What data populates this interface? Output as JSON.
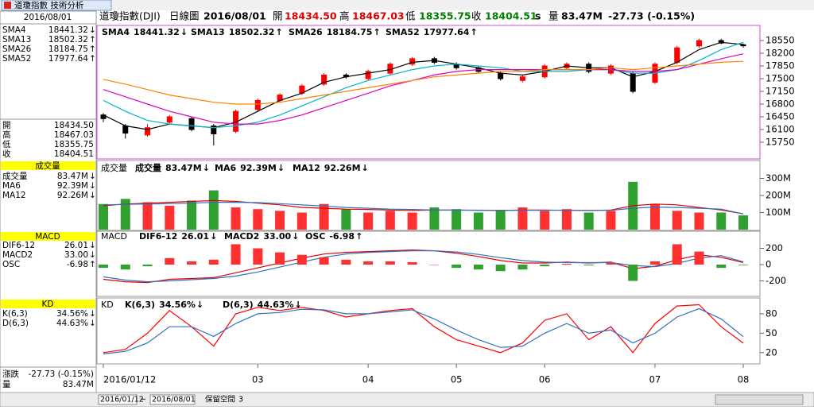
{
  "window": {
    "tab": "道瓊指數 技術分析"
  },
  "header": {
    "symbol": "道瓊指數(DJI)",
    "period": "日線圖",
    "date": "2016/08/01",
    "open_label": "開",
    "open": "18434.50",
    "high_label": "高",
    "high": "18467.03",
    "low_label": "低",
    "low": "18355.75",
    "close_label": "收",
    "close": "18404.51",
    "flag": "s",
    "volume_label": "量",
    "volume": "83.47M",
    "change": "-27.73 (-0.15%)"
  },
  "sidebar": {
    "change_label": "漲跌"
  },
  "footer": {
    "start": "2016/01/12",
    "sep": "~",
    "end": "2016/08/01",
    "reserve_label": "保留空間",
    "reserve": "3"
  },
  "chart_data": [
    {
      "type": "candlestick",
      "categories": [
        "2016/01/12",
        null,
        null,
        null,
        null,
        null,
        null,
        "03",
        null,
        null,
        null,
        null,
        "04",
        null,
        null,
        null,
        "05",
        null,
        null,
        null,
        "06",
        null,
        null,
        null,
        null,
        "07",
        null,
        null,
        null,
        "08"
      ],
      "open": [
        16500,
        16200,
        15950,
        16300,
        16400,
        16200,
        16050,
        16650,
        16900,
        17100,
        17350,
        17600,
        17500,
        17650,
        17900,
        18050,
        17900,
        17800,
        17650,
        17450,
        17550,
        17800,
        17900,
        17650,
        17650,
        17400,
        17950,
        18400,
        18550,
        18434.5
      ],
      "high": [
        16550,
        16250,
        16250,
        16500,
        16450,
        16250,
        16650,
        16950,
        17100,
        17350,
        17650,
        17650,
        17750,
        17950,
        18100,
        18100,
        17950,
        17850,
        17700,
        17600,
        17900,
        17950,
        17950,
        17900,
        17700,
        17950,
        18400,
        18600,
        18600,
        18467.03
      ],
      "low": [
        16300,
        15850,
        15900,
        16250,
        16050,
        15660,
        16000,
        16600,
        16850,
        17050,
        17300,
        17500,
        17450,
        17600,
        17850,
        17900,
        17750,
        17650,
        17450,
        17400,
        17500,
        17750,
        17650,
        17600,
        17100,
        17350,
        17900,
        18350,
        18450,
        18355.75
      ],
      "close": [
        16400,
        16000,
        16150,
        16450,
        16100,
        15980,
        16600,
        16900,
        17050,
        17300,
        17600,
        17550,
        17700,
        17900,
        18050,
        17950,
        17800,
        17700,
        17500,
        17550,
        17850,
        17900,
        17700,
        17850,
        17150,
        17900,
        18350,
        18550,
        18480,
        18404.51
      ],
      "up_color": "#ff0000",
      "down_color": "#000000",
      "series": [
        {
          "name": "SMA4",
          "color": "#000000",
          "style": "line",
          "last_label": "18441.32",
          "arrow": "↓",
          "arrow_color": "#008000",
          "values": [
            16500,
            16200,
            16100,
            16250,
            16200,
            16150,
            16300,
            16600,
            16900,
            17100,
            17400,
            17550,
            17650,
            17750,
            17950,
            18000,
            17900,
            17800,
            17650,
            17600,
            17700,
            17850,
            17800,
            17800,
            17550,
            17700,
            17950,
            18300,
            18500,
            18441.32
          ]
        },
        {
          "name": "SMA13",
          "color": "#00b8c8",
          "style": "line",
          "last_label": "18502.32",
          "arrow": "↑",
          "arrow_color": "#ff0000",
          "values": [
            16900,
            16600,
            16350,
            16250,
            16200,
            16150,
            16200,
            16300,
            16500,
            16750,
            17000,
            17250,
            17450,
            17600,
            17750,
            17850,
            17900,
            17850,
            17800,
            17700,
            17700,
            17700,
            17750,
            17750,
            17650,
            17650,
            17750,
            18000,
            18300,
            18502.32
          ]
        },
        {
          "name": "SMA26",
          "color": "#e000c0",
          "style": "line",
          "last_label": "18184.75",
          "arrow": "↑",
          "arrow_color": "#ff0000",
          "values": [
            17200,
            17000,
            16800,
            16600,
            16450,
            16300,
            16250,
            16250,
            16350,
            16500,
            16700,
            16900,
            17100,
            17300,
            17450,
            17600,
            17700,
            17750,
            17750,
            17750,
            17750,
            17750,
            17750,
            17750,
            17700,
            17700,
            17750,
            17900,
            18050,
            18184.75
          ]
        },
        {
          "name": "SMA52",
          "color": "#ff8000",
          "style": "line",
          "last_label": "17977.64",
          "arrow": "↑",
          "arrow_color": "#ff0000",
          "values": [
            17480,
            17350,
            17200,
            17050,
            16950,
            16850,
            16800,
            16800,
            16850,
            16950,
            17050,
            17150,
            17250,
            17350,
            17450,
            17550,
            17600,
            17650,
            17700,
            17700,
            17750,
            17750,
            17750,
            17800,
            17750,
            17800,
            17850,
            17900,
            17950,
            17977.64
          ]
        }
      ],
      "ylim": [
        15290,
        18944
      ],
      "yticks": [
        18550,
        18200,
        17850,
        17500,
        17150,
        16800,
        16450,
        16100,
        15750
      ]
    },
    {
      "type": "bar",
      "title": "成交量",
      "series": [
        {
          "name": "成交量",
          "style": "bar",
          "color": "#000000",
          "up_color": "#ff3030",
          "down_color": "#30a030",
          "last_label": "83.47M",
          "arrow": "↓",
          "arrow_color": "#008000",
          "values": [
            150,
            180,
            160,
            140,
            170,
            230,
            130,
            120,
            110,
            100,
            150,
            120,
            100,
            110,
            100,
            130,
            120,
            100,
            110,
            130,
            110,
            120,
            100,
            110,
            280,
            150,
            110,
            100,
            100,
            83.47
          ]
        },
        {
          "name": "MA6",
          "color": "#e00000",
          "style": "line",
          "last_label": "92.39M",
          "arrow": "↓",
          "arrow_color": "#008000",
          "values": [
            140,
            150,
            155,
            160,
            165,
            170,
            165,
            155,
            145,
            130,
            125,
            120,
            118,
            115,
            112,
            115,
            115,
            113,
            112,
            115,
            115,
            113,
            112,
            115,
            140,
            150,
            145,
            130,
            115,
            92.39
          ]
        },
        {
          "name": "MA12",
          "color": "#3070c0",
          "style": "line",
          "last_label": "92.26M",
          "arrow": "↓",
          "arrow_color": "#008000",
          "values": [
            145,
            148,
            150,
            152,
            155,
            160,
            160,
            158,
            152,
            145,
            138,
            130,
            125,
            120,
            118,
            115,
            114,
            114,
            113,
            113,
            113,
            114,
            113,
            113,
            125,
            132,
            130,
            125,
            120,
            92.26
          ]
        }
      ],
      "ylim": [
        0,
        400
      ],
      "yticks": [
        {
          "value": 300,
          "label": "300M"
        },
        {
          "value": 200,
          "label": "200M"
        },
        {
          "value": 100,
          "label": "100M"
        }
      ]
    },
    {
      "type": "bar",
      "title": "MACD",
      "series": [
        {
          "name": "DIF6-12",
          "color": "#e00000",
          "style": "line",
          "last_label": "26.01",
          "arrow": "↓",
          "arrow_color": "#008000",
          "values": [
            -180,
            -210,
            -220,
            -180,
            -170,
            -160,
            -100,
            -40,
            20,
            80,
            130,
            150,
            160,
            170,
            180,
            170,
            140,
            100,
            50,
            20,
            20,
            30,
            20,
            30,
            -50,
            -20,
            60,
            120,
            90,
            26.01
          ]
        },
        {
          "name": "MACD2",
          "color": "#3070c0",
          "style": "line",
          "last_label": "33.00",
          "arrow": "↓",
          "arrow_color": "#008000",
          "values": [
            -150,
            -190,
            -210,
            -200,
            -185,
            -170,
            -140,
            -90,
            -30,
            30,
            90,
            130,
            150,
            160,
            170,
            170,
            155,
            125,
            85,
            50,
            30,
            25,
            25,
            25,
            -10,
            -25,
            15,
            80,
            110,
            33.0
          ]
        },
        {
          "name": "OSC",
          "color": "#000080",
          "style": "bar",
          "up_color": "#ff3030",
          "down_color": "#30a030",
          "last_label": "-6.98",
          "arrow": "↑",
          "arrow_color": "#ff0000",
          "values": [
            -40,
            -60,
            -20,
            80,
            40,
            60,
            250,
            200,
            150,
            120,
            90,
            60,
            40,
            40,
            30,
            0,
            -40,
            -60,
            -80,
            -60,
            -20,
            10,
            -10,
            20,
            -200,
            40,
            250,
            160,
            -40,
            -6.98
          ]
        }
      ],
      "ylim": [
        -380,
        400
      ],
      "yticks": [
        200,
        0,
        -200
      ]
    },
    {
      "type": "line",
      "title": "KD",
      "series": [
        {
          "name": "K(6,3)",
          "color": "#ff0000",
          "style": "line",
          "last_label": "34.56%",
          "arrow": "↓",
          "arrow_color": "#008000",
          "values": [
            20,
            25,
            50,
            85,
            60,
            30,
            80,
            90,
            85,
            90,
            85,
            75,
            80,
            85,
            88,
            60,
            40,
            30,
            20,
            35,
            70,
            80,
            40,
            60,
            20,
            65,
            92,
            94,
            60,
            34.56
          ]
        },
        {
          "name": "D(6,3)",
          "color": "#3070c0",
          "style": "line",
          "last_label": "44.63%",
          "arrow": "↓",
          "arrow_color": "#008000",
          "values": [
            18,
            22,
            35,
            60,
            60,
            45,
            65,
            80,
            82,
            87,
            86,
            80,
            80,
            83,
            86,
            72,
            55,
            40,
            28,
            30,
            50,
            65,
            50,
            55,
            35,
            50,
            75,
            88,
            72,
            44.63
          ]
        }
      ],
      "ylim": [
        5,
        102
      ],
      "yticks": [
        80,
        50,
        20
      ]
    }
  ]
}
